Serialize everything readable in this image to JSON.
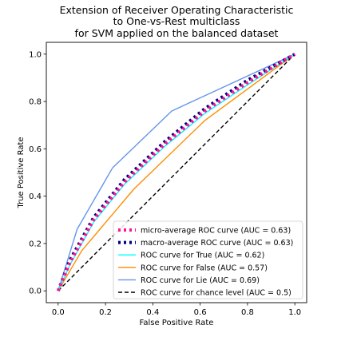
{
  "chart_data": {
    "type": "line",
    "title_lines": [
      "Extension of Receiver Operating Characteristic",
      "to One-vs-Rest multiclass",
      "for SVM applied on the balanced dataset"
    ],
    "xlabel": "False Positive Rate",
    "ylabel": "True Positive Rate",
    "xlim": [
      -0.05,
      1.05
    ],
    "ylim": [
      -0.05,
      1.05
    ],
    "xticks": [
      0.0,
      0.2,
      0.4,
      0.6,
      0.8,
      1.0
    ],
    "yticks": [
      0.0,
      0.2,
      0.4,
      0.6,
      0.8,
      1.0
    ],
    "xtick_labels": [
      "0.0",
      "0.2",
      "0.4",
      "0.6",
      "0.8",
      "1.0"
    ],
    "ytick_labels": [
      "0.0",
      "0.2",
      "0.4",
      "0.6",
      "0.8",
      "1.0"
    ],
    "grid": false,
    "legend_position": "lower-right",
    "series": [
      {
        "name": "micro-average ROC curve (AUC = 0.63)",
        "color": "#ff1493",
        "style": "dotted",
        "x": [
          0.0,
          0.05,
          0.15,
          0.28,
          0.45,
          0.62,
          0.8,
          1.0
        ],
        "y": [
          0.0,
          0.12,
          0.3,
          0.46,
          0.62,
          0.76,
          0.88,
          1.0
        ]
      },
      {
        "name": "macro-average ROC curve (AUC = 0.63)",
        "color": "#000080",
        "style": "dotted",
        "x": [
          0.0,
          0.05,
          0.15,
          0.28,
          0.45,
          0.62,
          0.8,
          1.0
        ],
        "y": [
          0.0,
          0.13,
          0.31,
          0.47,
          0.63,
          0.77,
          0.89,
          1.0
        ]
      },
      {
        "name": "ROC curve for True (AUC = 0.62)",
        "color": "#00ffff",
        "style": "solid",
        "x": [
          0.0,
          0.05,
          0.15,
          0.28,
          0.45,
          0.62,
          0.8,
          1.0
        ],
        "y": [
          0.0,
          0.11,
          0.29,
          0.45,
          0.61,
          0.75,
          0.87,
          1.0
        ]
      },
      {
        "name": "ROC curve for False (AUC = 0.57)",
        "color": "#ff8c00",
        "style": "solid",
        "x": [
          0.0,
          0.1,
          0.32,
          0.62,
          1.0
        ],
        "y": [
          0.0,
          0.17,
          0.43,
          0.72,
          1.0
        ]
      },
      {
        "name": "ROC curve for Lie (AUC = 0.69)",
        "color": "#6495ed",
        "style": "solid",
        "x": [
          0.0,
          0.08,
          0.23,
          0.48,
          1.0
        ],
        "y": [
          0.0,
          0.26,
          0.52,
          0.76,
          1.0
        ]
      },
      {
        "name": "ROC curve for chance level (AUC = 0.5)",
        "color": "#000000",
        "style": "dashed",
        "x": [
          0.0,
          1.0
        ],
        "y": [
          0.0,
          1.0
        ]
      }
    ]
  }
}
